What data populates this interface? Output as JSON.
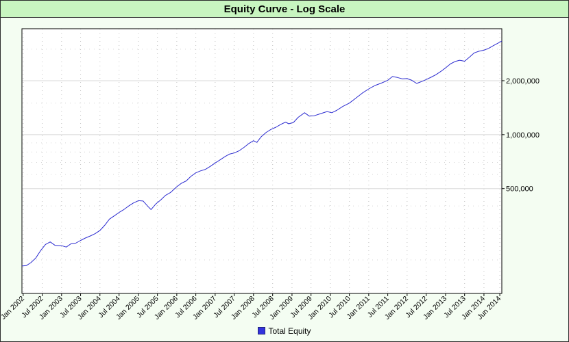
{
  "chart_data": {
    "type": "line",
    "title": "Equity Curve - Log Scale",
    "y_scale": "log",
    "ylim": [
      130000,
      3900000
    ],
    "xlim": [
      "2001-12-20",
      "2014-06-20"
    ],
    "y_ticks": [
      {
        "value": 500000,
        "label": "500,000"
      },
      {
        "value": 1000000,
        "label": "1,000,000"
      },
      {
        "value": 2000000,
        "label": "2,000,000"
      }
    ],
    "x_ticks": [
      {
        "date": "2002-01-01",
        "label": "Jan 2002"
      },
      {
        "date": "2002-07-01",
        "label": "Jul 2002"
      },
      {
        "date": "2003-01-01",
        "label": "Jan 2003"
      },
      {
        "date": "2003-07-01",
        "label": "Jul 2003"
      },
      {
        "date": "2004-01-01",
        "label": "Jan 2004"
      },
      {
        "date": "2004-07-01",
        "label": "Jul 2004"
      },
      {
        "date": "2005-01-01",
        "label": "Jan 2005"
      },
      {
        "date": "2005-07-01",
        "label": "Jul 2005"
      },
      {
        "date": "2006-01-01",
        "label": "Jan 2006"
      },
      {
        "date": "2006-07-01",
        "label": "Jul 2006"
      },
      {
        "date": "2007-01-01",
        "label": "Jan 2007"
      },
      {
        "date": "2007-07-01",
        "label": "Jul 2007"
      },
      {
        "date": "2008-01-01",
        "label": "Jan 2008"
      },
      {
        "date": "2008-07-01",
        "label": "Jul 2008"
      },
      {
        "date": "2009-01-01",
        "label": "Jan 2009"
      },
      {
        "date": "2009-07-01",
        "label": "Jul 2009"
      },
      {
        "date": "2010-01-01",
        "label": "Jan 2010"
      },
      {
        "date": "2010-07-01",
        "label": "Jul 2010"
      },
      {
        "date": "2011-01-01",
        "label": "Jan 2011"
      },
      {
        "date": "2011-07-01",
        "label": "Jul 2011"
      },
      {
        "date": "2012-01-01",
        "label": "Jan 2012"
      },
      {
        "date": "2012-07-01",
        "label": "Jul 2012"
      },
      {
        "date": "2013-01-01",
        "label": "Jan 2013"
      },
      {
        "date": "2013-07-01",
        "label": "Jul 2013"
      },
      {
        "date": "2014-01-01",
        "label": "Jan 2014"
      },
      {
        "date": "2014-06-01",
        "label": "Jun 2014"
      }
    ],
    "grid": true,
    "legend_position": "bottom-center",
    "series": [
      {
        "name": "Total Equity",
        "color": "#2b2bd0",
        "points": [
          {
            "x": "2001-12-20",
            "y": 185000
          },
          {
            "x": "2002-02-01",
            "y": 186000
          },
          {
            "x": "2002-03-15",
            "y": 193000
          },
          {
            "x": "2002-05-01",
            "y": 205000
          },
          {
            "x": "2002-06-15",
            "y": 225000
          },
          {
            "x": "2002-08-01",
            "y": 244000
          },
          {
            "x": "2002-09-15",
            "y": 252000
          },
          {
            "x": "2002-11-01",
            "y": 241000
          },
          {
            "x": "2003-01-01",
            "y": 240000
          },
          {
            "x": "2003-02-15",
            "y": 236000
          },
          {
            "x": "2003-04-01",
            "y": 246000
          },
          {
            "x": "2003-05-15",
            "y": 248000
          },
          {
            "x": "2003-07-01",
            "y": 257000
          },
          {
            "x": "2003-08-15",
            "y": 265000
          },
          {
            "x": "2003-10-01",
            "y": 272000
          },
          {
            "x": "2003-11-15",
            "y": 280000
          },
          {
            "x": "2004-01-01",
            "y": 292000
          },
          {
            "x": "2004-02-15",
            "y": 312000
          },
          {
            "x": "2004-04-01",
            "y": 338000
          },
          {
            "x": "2004-05-15",
            "y": 352000
          },
          {
            "x": "2004-07-01",
            "y": 368000
          },
          {
            "x": "2004-08-15",
            "y": 382000
          },
          {
            "x": "2004-10-01",
            "y": 400000
          },
          {
            "x": "2004-11-15",
            "y": 416000
          },
          {
            "x": "2005-01-01",
            "y": 428000
          },
          {
            "x": "2005-02-15",
            "y": 426000
          },
          {
            "x": "2005-04-01",
            "y": 398000
          },
          {
            "x": "2005-05-01",
            "y": 382000
          },
          {
            "x": "2005-06-15",
            "y": 410000
          },
          {
            "x": "2005-08-01",
            "y": 432000
          },
          {
            "x": "2005-09-15",
            "y": 458000
          },
          {
            "x": "2005-11-01",
            "y": 475000
          },
          {
            "x": "2006-01-01",
            "y": 512000
          },
          {
            "x": "2006-02-15",
            "y": 536000
          },
          {
            "x": "2006-04-01",
            "y": 552000
          },
          {
            "x": "2006-05-15",
            "y": 585000
          },
          {
            "x": "2006-07-01",
            "y": 612000
          },
          {
            "x": "2006-08-15",
            "y": 628000
          },
          {
            "x": "2006-10-01",
            "y": 640000
          },
          {
            "x": "2006-11-15",
            "y": 665000
          },
          {
            "x": "2007-01-01",
            "y": 695000
          },
          {
            "x": "2007-02-15",
            "y": 722000
          },
          {
            "x": "2007-04-01",
            "y": 752000
          },
          {
            "x": "2007-05-15",
            "y": 778000
          },
          {
            "x": "2007-07-01",
            "y": 790000
          },
          {
            "x": "2007-08-15",
            "y": 812000
          },
          {
            "x": "2007-10-01",
            "y": 848000
          },
          {
            "x": "2007-11-15",
            "y": 890000
          },
          {
            "x": "2008-01-01",
            "y": 925000
          },
          {
            "x": "2008-02-01",
            "y": 905000
          },
          {
            "x": "2008-03-15",
            "y": 975000
          },
          {
            "x": "2008-05-01",
            "y": 1030000
          },
          {
            "x": "2008-06-15",
            "y": 1070000
          },
          {
            "x": "2008-08-01",
            "y": 1100000
          },
          {
            "x": "2008-09-15",
            "y": 1140000
          },
          {
            "x": "2008-11-01",
            "y": 1175000
          },
          {
            "x": "2008-12-01",
            "y": 1150000
          },
          {
            "x": "2009-01-15",
            "y": 1170000
          },
          {
            "x": "2009-03-01",
            "y": 1250000
          },
          {
            "x": "2009-05-01",
            "y": 1325000
          },
          {
            "x": "2009-06-15",
            "y": 1268000
          },
          {
            "x": "2009-08-01",
            "y": 1275000
          },
          {
            "x": "2009-10-01",
            "y": 1310000
          },
          {
            "x": "2009-12-01",
            "y": 1345000
          },
          {
            "x": "2010-01-15",
            "y": 1325000
          },
          {
            "x": "2010-03-01",
            "y": 1365000
          },
          {
            "x": "2010-05-01",
            "y": 1440000
          },
          {
            "x": "2010-07-01",
            "y": 1500000
          },
          {
            "x": "2010-09-01",
            "y": 1600000
          },
          {
            "x": "2010-11-01",
            "y": 1705000
          },
          {
            "x": "2011-01-01",
            "y": 1800000
          },
          {
            "x": "2011-03-01",
            "y": 1880000
          },
          {
            "x": "2011-05-01",
            "y": 1940000
          },
          {
            "x": "2011-07-01",
            "y": 2010000
          },
          {
            "x": "2011-08-15",
            "y": 2110000
          },
          {
            "x": "2011-10-01",
            "y": 2085000
          },
          {
            "x": "2011-11-15",
            "y": 2050000
          },
          {
            "x": "2012-01-01",
            "y": 2055000
          },
          {
            "x": "2012-02-15",
            "y": 2010000
          },
          {
            "x": "2012-04-01",
            "y": 1930000
          },
          {
            "x": "2012-05-15",
            "y": 1975000
          },
          {
            "x": "2012-07-01",
            "y": 2030000
          },
          {
            "x": "2012-08-15",
            "y": 2090000
          },
          {
            "x": "2012-10-01",
            "y": 2160000
          },
          {
            "x": "2012-11-15",
            "y": 2250000
          },
          {
            "x": "2013-01-01",
            "y": 2360000
          },
          {
            "x": "2013-02-15",
            "y": 2480000
          },
          {
            "x": "2013-04-01",
            "y": 2560000
          },
          {
            "x": "2013-05-15",
            "y": 2600000
          },
          {
            "x": "2013-07-01",
            "y": 2570000
          },
          {
            "x": "2013-08-15",
            "y": 2700000
          },
          {
            "x": "2013-10-01",
            "y": 2860000
          },
          {
            "x": "2013-11-15",
            "y": 2920000
          },
          {
            "x": "2014-01-01",
            "y": 2960000
          },
          {
            "x": "2014-02-15",
            "y": 3030000
          },
          {
            "x": "2014-04-01",
            "y": 3140000
          },
          {
            "x": "2014-05-15",
            "y": 3240000
          },
          {
            "x": "2014-06-20",
            "y": 3330000
          }
        ]
      }
    ]
  }
}
